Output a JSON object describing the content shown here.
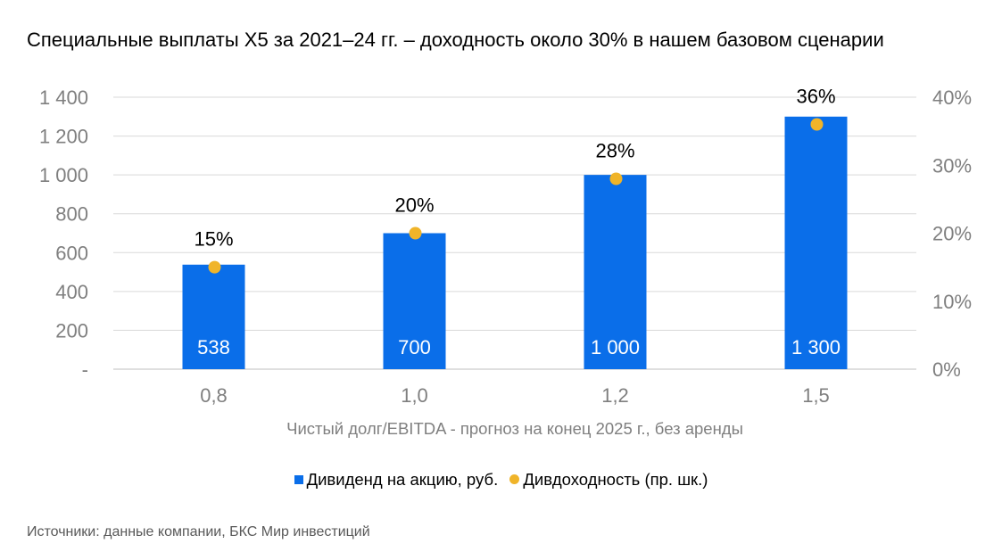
{
  "title": "Специальные выплаты X5 за 2021–24 гг. – доходность около 30% в нашем базовом сценарии",
  "source": "Источники: данные компании, БКС Мир инвестиций",
  "chart_data": {
    "type": "bar",
    "xlabel": "Чистый долг/EBITDA - прогноз на конец 2025 г., без аренды",
    "categories": [
      "0,8",
      "1,0",
      "1,2",
      "1,5"
    ],
    "series": [
      {
        "name": "Дивиденд на акцию, руб.",
        "type": "bar",
        "axis": "left",
        "values": [
          538,
          700,
          1000,
          1300
        ],
        "labels": [
          "538",
          "700",
          "1 000",
          "1 300"
        ],
        "color": "#0a6ee9"
      },
      {
        "name": "Дивдоходность (пр. шк.)",
        "type": "scatter",
        "axis": "right",
        "values": [
          15,
          20,
          28,
          36
        ],
        "labels": [
          "15%",
          "20%",
          "28%",
          "36%"
        ],
        "color": "#f0b429"
      }
    ],
    "y_left": {
      "min": 0,
      "max": 1400,
      "ticks": [
        0,
        200,
        400,
        600,
        800,
        1000,
        1200,
        1400
      ],
      "tick_labels": [
        "-",
        "200",
        "400",
        "600",
        "800",
        "1 000",
        "1 200",
        "1 400"
      ]
    },
    "y_right": {
      "min": 0,
      "max": 40,
      "ticks": [
        0,
        10,
        20,
        30,
        40
      ],
      "tick_labels": [
        "0%",
        "10%",
        "20%",
        "30%",
        "40%"
      ]
    },
    "grid": true,
    "legend_position": "bottom"
  }
}
